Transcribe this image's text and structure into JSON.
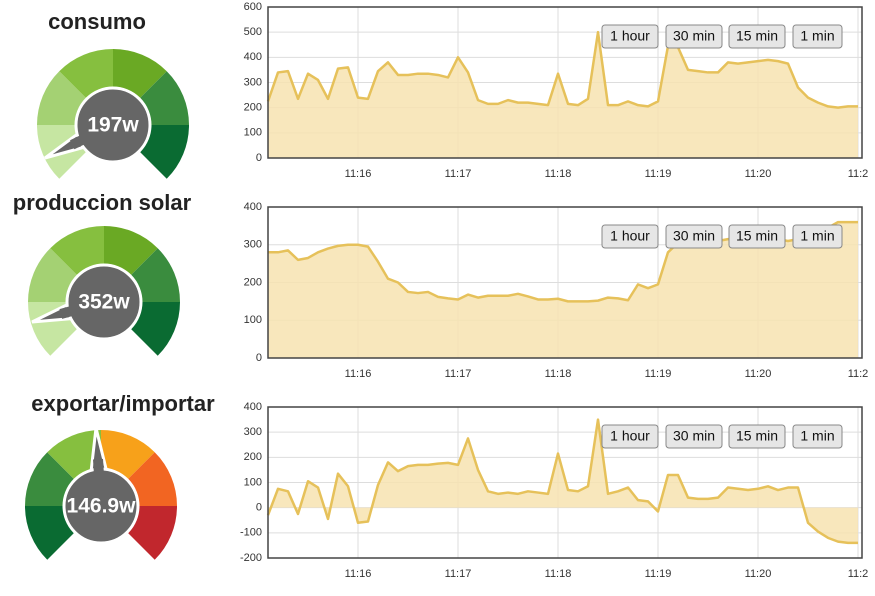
{
  "gauges": [
    {
      "title": "consumo",
      "value_text": "197w"
    },
    {
      "title": "produccion solar",
      "value_text": "352w"
    },
    {
      "title": "exportar/importar",
      "value_text": "146.9w"
    }
  ],
  "chart_data": [
    {
      "type": "area",
      "color": "#e6c15a",
      "fill": "#f7e3b0",
      "grid": true,
      "categories": [
        null,
        null,
        null,
        null,
        null,
        null,
        null,
        null,
        null,
        "11:16",
        null,
        null,
        null,
        null,
        null,
        null,
        null,
        null,
        null,
        "11:17",
        null,
        null,
        null,
        null,
        null,
        null,
        null,
        null,
        null,
        "11:18",
        null,
        null,
        null,
        null,
        null,
        null,
        null,
        null,
        null,
        "11:19",
        null,
        null,
        null,
        null,
        null,
        null,
        null,
        null,
        null,
        "11:20",
        null,
        null,
        null,
        null,
        null,
        null,
        null,
        null,
        null,
        "11:2"
      ],
      "values": [
        225,
        340,
        345,
        235,
        335,
        310,
        235,
        355,
        360,
        240,
        235,
        345,
        380,
        330,
        330,
        335,
        335,
        330,
        320,
        400,
        340,
        230,
        215,
        215,
        230,
        220,
        220,
        215,
        210,
        335,
        215,
        210,
        235,
        500,
        210,
        210,
        225,
        210,
        205,
        225,
        445,
        440,
        350,
        345,
        340,
        340,
        380,
        375,
        380,
        385,
        390,
        385,
        375,
        280,
        240,
        220,
        205,
        200,
        205,
        205
      ],
      "ylim": [
        0,
        600
      ],
      "yticks": [
        0,
        100,
        200,
        300,
        400,
        500,
        600
      ],
      "buttons": [
        "1 hour",
        "30 min",
        "15 min",
        "1 min"
      ]
    },
    {
      "type": "area",
      "color": "#e6c15a",
      "fill": "#f7e3b0",
      "grid": true,
      "categories": [
        null,
        null,
        null,
        null,
        null,
        null,
        null,
        null,
        null,
        "11:16",
        null,
        null,
        null,
        null,
        null,
        null,
        null,
        null,
        null,
        "11:17",
        null,
        null,
        null,
        null,
        null,
        null,
        null,
        null,
        null,
        "11:18",
        null,
        null,
        null,
        null,
        null,
        null,
        null,
        null,
        null,
        "11:19",
        null,
        null,
        null,
        null,
        null,
        null,
        null,
        null,
        null,
        "11:20",
        null,
        null,
        null,
        null,
        null,
        null,
        null,
        null,
        null,
        "11:2"
      ],
      "values": [
        280,
        280,
        285,
        260,
        265,
        280,
        290,
        297,
        300,
        300,
        295,
        255,
        210,
        200,
        175,
        172,
        175,
        162,
        158,
        155,
        168,
        160,
        165,
        165,
        165,
        170,
        163,
        155,
        155,
        157,
        150,
        150,
        150,
        152,
        160,
        158,
        153,
        195,
        185,
        195,
        280,
        305,
        310,
        310,
        312,
        310,
        315,
        312,
        315,
        310,
        312,
        315,
        310,
        315,
        315,
        315,
        345,
        360,
        360,
        360
      ],
      "ylim": [
        0,
        400
      ],
      "yticks": [
        0,
        100,
        200,
        300,
        400
      ],
      "buttons": [
        "1 hour",
        "30 min",
        "15 min",
        "1 min"
      ]
    },
    {
      "type": "area",
      "color": "#e6c15a",
      "fill": "#f7e3b0",
      "grid": true,
      "categories": [
        null,
        null,
        null,
        null,
        null,
        null,
        null,
        null,
        null,
        "11:16",
        null,
        null,
        null,
        null,
        null,
        null,
        null,
        null,
        null,
        "11:17",
        null,
        null,
        null,
        null,
        null,
        null,
        null,
        null,
        null,
        "11:18",
        null,
        null,
        null,
        null,
        null,
        null,
        null,
        null,
        null,
        "11:19",
        null,
        null,
        null,
        null,
        null,
        null,
        null,
        null,
        null,
        "11:20",
        null,
        null,
        null,
        null,
        null,
        null,
        null,
        null,
        null,
        "11:2"
      ],
      "values": [
        -30,
        75,
        65,
        -25,
        105,
        80,
        -45,
        135,
        85,
        -60,
        -55,
        90,
        180,
        145,
        165,
        170,
        170,
        175,
        178,
        170,
        275,
        150,
        65,
        55,
        60,
        55,
        65,
        60,
        55,
        215,
        70,
        65,
        85,
        350,
        55,
        65,
        80,
        30,
        25,
        -15,
        130,
        130,
        40,
        35,
        35,
        40,
        80,
        75,
        70,
        75,
        85,
        70,
        80,
        80,
        -60,
        -95,
        -120,
        -135,
        -140,
        -140
      ],
      "ylim": [
        -200,
        400
      ],
      "yticks": [
        -200,
        -100,
        0,
        100,
        200,
        300,
        400
      ],
      "buttons": [
        "1 hour",
        "30 min",
        "15 min",
        "1 min"
      ]
    }
  ]
}
